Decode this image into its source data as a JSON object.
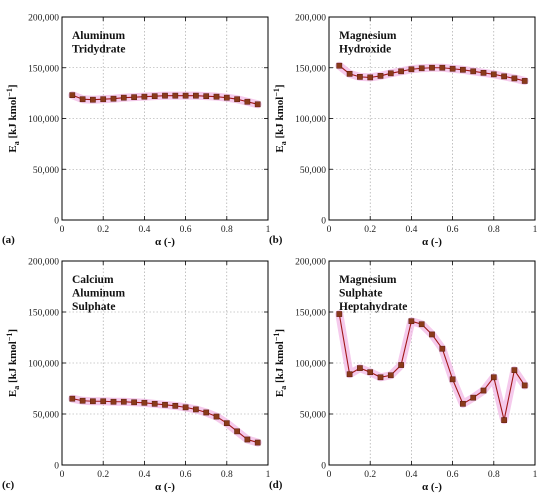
{
  "chart_data": [
    {
      "type": "line",
      "panel_label": "(a)",
      "title_lines": [
        "Aluminum",
        "Tridydrate"
      ],
      "xlabel": "α (-)",
      "ylabel": "Ea [kJ kmol−1]",
      "xlim": [
        0,
        1
      ],
      "ylim": [
        0,
        200000
      ],
      "x_ticks": [
        0,
        0.2,
        0.4,
        0.6,
        0.8,
        1
      ],
      "x_tick_labels": [
        "0",
        "0.2",
        "0.4",
        "0.6",
        "0.8",
        "1"
      ],
      "y_ticks": [
        0,
        50000,
        100000,
        150000,
        200000
      ],
      "y_tick_labels": [
        "0",
        "50,000",
        "100,000",
        "150,000",
        "200,000"
      ],
      "grid": true,
      "series": [
        {
          "x": [
            0.05,
            0.1,
            0.15,
            0.2,
            0.25,
            0.3,
            0.35,
            0.4,
            0.45,
            0.5,
            0.55,
            0.6,
            0.65,
            0.7,
            0.75,
            0.8,
            0.85,
            0.9,
            0.95
          ],
          "y": [
            123000,
            119000,
            118500,
            119000,
            119500,
            120500,
            121000,
            121500,
            122000,
            122500,
            122500,
            122500,
            122500,
            122000,
            121500,
            120500,
            119000,
            116500,
            114000
          ]
        }
      ]
    },
    {
      "type": "line",
      "panel_label": "(b)",
      "title_lines": [
        "Magnesium",
        "Hydroxide"
      ],
      "xlabel": "α (-)",
      "ylabel": "Ea [kJ kmol−1]",
      "xlim": [
        0,
        1
      ],
      "ylim": [
        0,
        200000
      ],
      "x_ticks": [
        0,
        0.2,
        0.4,
        0.6,
        0.8,
        1
      ],
      "x_tick_labels": [
        "0",
        "0.2",
        "0.4",
        "0.6",
        "0.8",
        "1"
      ],
      "y_ticks": [
        0,
        50000,
        100000,
        150000,
        200000
      ],
      "y_tick_labels": [
        "0",
        "50,000",
        "100,000",
        "150,000",
        "200,000"
      ],
      "grid": true,
      "series": [
        {
          "x": [
            0.05,
            0.1,
            0.15,
            0.2,
            0.25,
            0.3,
            0.35,
            0.4,
            0.45,
            0.5,
            0.55,
            0.6,
            0.65,
            0.7,
            0.75,
            0.8,
            0.85,
            0.9,
            0.95
          ],
          "y": [
            152000,
            144000,
            141000,
            140500,
            142000,
            144500,
            146500,
            148500,
            149500,
            150000,
            150000,
            149000,
            148000,
            146500,
            145000,
            143500,
            141500,
            139500,
            137000
          ]
        }
      ]
    },
    {
      "type": "line",
      "panel_label": "(c)",
      "title_lines": [
        "Calcium",
        "Aluminum",
        "Sulphate"
      ],
      "xlabel": "α (-)",
      "ylabel": "Ea [kJ kmol−1]",
      "xlim": [
        0,
        1
      ],
      "ylim": [
        0,
        200000
      ],
      "x_ticks": [
        0,
        0.2,
        0.4,
        0.6,
        0.8,
        1
      ],
      "x_tick_labels": [
        "0",
        "0.2",
        "0.4",
        "0.6",
        "0.8",
        "1"
      ],
      "y_ticks": [
        0,
        50000,
        100000,
        150000,
        200000
      ],
      "y_tick_labels": [
        "0",
        "50,000",
        "100,000",
        "150,000",
        "200,000"
      ],
      "grid": true,
      "series": [
        {
          "x": [
            0.05,
            0.1,
            0.15,
            0.2,
            0.25,
            0.3,
            0.35,
            0.4,
            0.45,
            0.5,
            0.55,
            0.6,
            0.65,
            0.7,
            0.75,
            0.8,
            0.85,
            0.9,
            0.95
          ],
          "y": [
            65000,
            63000,
            62500,
            62500,
            62000,
            62000,
            61500,
            61000,
            60000,
            59000,
            58000,
            56500,
            54500,
            51500,
            47500,
            41000,
            33000,
            25000,
            22000
          ]
        }
      ]
    },
    {
      "type": "line",
      "panel_label": "(d)",
      "title_lines": [
        "Magnesium",
        "Sulphate",
        "Heptahydrate"
      ],
      "xlabel": "α (-)",
      "ylabel": "Ea [kJ kmol−1]",
      "xlim": [
        0,
        1
      ],
      "ylim": [
        0,
        200000
      ],
      "x_ticks": [
        0,
        0.2,
        0.4,
        0.6,
        0.8,
        1
      ],
      "x_tick_labels": [
        "0",
        "0.2",
        "0.4",
        "0.6",
        "0.8",
        "1"
      ],
      "y_ticks": [
        0,
        50000,
        100000,
        150000,
        200000
      ],
      "y_tick_labels": [
        "0",
        "50,000",
        "100,000",
        "150,000",
        "200,000"
      ],
      "grid": true,
      "series": [
        {
          "x": [
            0.05,
            0.1,
            0.15,
            0.2,
            0.25,
            0.3,
            0.35,
            0.4,
            0.45,
            0.5,
            0.55,
            0.6,
            0.65,
            0.7,
            0.75,
            0.8,
            0.85,
            0.9,
            0.95
          ],
          "y": [
            148000,
            89000,
            95000,
            91000,
            86000,
            88000,
            98000,
            141000,
            138000,
            128000,
            114000,
            84000,
            60000,
            66000,
            73000,
            86000,
            44000,
            93000,
            78000
          ]
        }
      ]
    }
  ]
}
